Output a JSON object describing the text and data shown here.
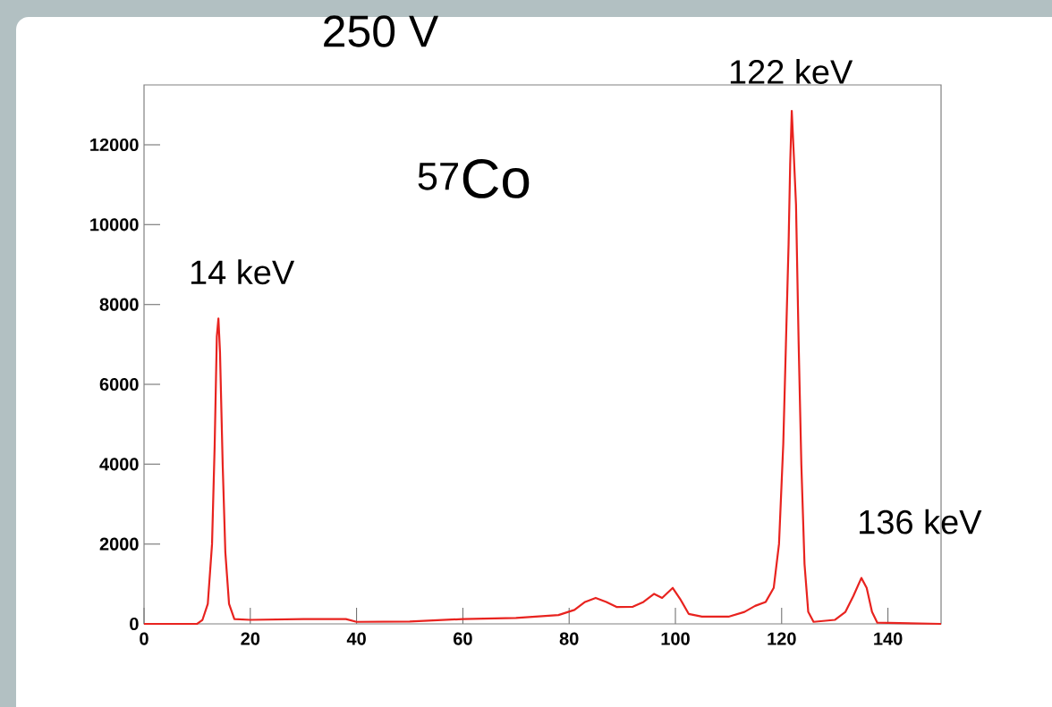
{
  "chart_data": {
    "type": "line",
    "title": "250 V",
    "x": [
      0,
      10,
      11,
      12,
      12.8,
      13.3,
      13.7,
      14.0,
      14.3,
      14.8,
      15.3,
      16,
      17,
      20,
      30,
      38,
      40,
      50,
      60,
      70,
      78,
      81,
      83,
      85,
      87,
      89,
      92,
      94,
      96,
      97.5,
      99.5,
      101,
      102.5,
      105,
      110,
      113,
      115,
      117,
      118.5,
      119.5,
      120.3,
      120.8,
      121.3,
      121.6,
      121.9,
      122.3,
      122.7,
      123.2,
      123.7,
      124.3,
      125,
      126,
      130,
      132,
      133.5,
      135,
      136,
      137,
      138,
      150
    ],
    "values": [
      0,
      0,
      100,
      500,
      2000,
      4500,
      7200,
      7650,
      6800,
      4000,
      1800,
      500,
      120,
      100,
      120,
      120,
      50,
      60,
      120,
      150,
      220,
      350,
      550,
      650,
      550,
      420,
      430,
      550,
      750,
      650,
      900,
      600,
      250,
      180,
      180,
      300,
      450,
      550,
      900,
      2000,
      4500,
      7000,
      9500,
      11500,
      12850,
      11700,
      10500,
      7000,
      4000,
      1500,
      300,
      50,
      100,
      300,
      700,
      1150,
      900,
      300,
      30,
      0
    ],
    "color": "#e8231f",
    "marker": "none",
    "line_style": "solid",
    "grid": false,
    "legend": false,
    "xlim": [
      0,
      150
    ],
    "ylim": [
      0,
      13500
    ],
    "xticks": [
      0,
      20,
      40,
      60,
      80,
      100,
      120,
      140
    ],
    "yticks": [
      0,
      2000,
      4000,
      6000,
      8000,
      10000,
      12000
    ],
    "annotations": [
      {
        "text": "14 keV",
        "x": 14,
        "y": 7650
      },
      {
        "text": "122 keV",
        "x": 122,
        "y": 12850
      },
      {
        "text": "136 keV",
        "x": 135,
        "y": 1150
      },
      "$^{57}$Co"
    ]
  }
}
